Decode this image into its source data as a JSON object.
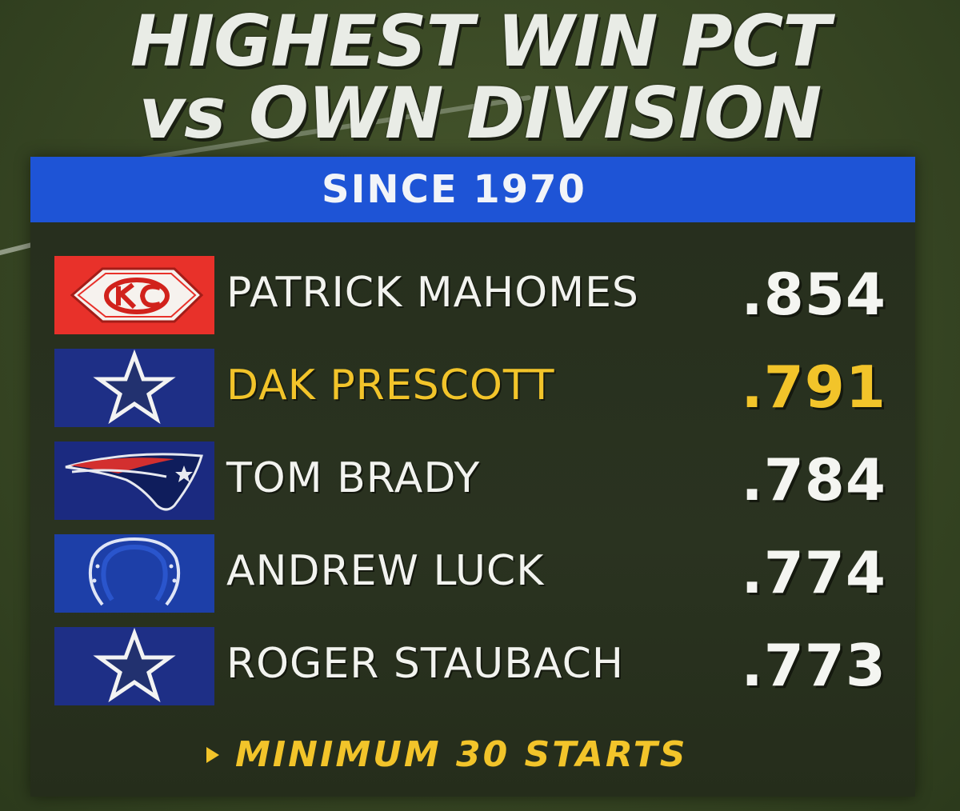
{
  "title": {
    "line1": "HIGHEST WIN PCT",
    "line2": "vs OWN DIVISION"
  },
  "banner": {
    "text": "SINCE 1970"
  },
  "colors": {
    "banner_blue": "#1e54d6",
    "highlight_gold": "#f2c42a",
    "text_white": "#f2f3ef"
  },
  "players": [
    {
      "team_icon": "chiefs-arrowhead-logo",
      "name": "PATRICK MAHOMES",
      "pct": ".854",
      "highlight": false
    },
    {
      "team_icon": "cowboys-star-logo",
      "name": "DAK PRESCOTT",
      "pct": ".791",
      "highlight": true
    },
    {
      "team_icon": "patriots-flying-elvis-logo",
      "name": "TOM BRADY",
      "pct": ".784",
      "highlight": false
    },
    {
      "team_icon": "colts-horseshoe-logo",
      "name": "ANDREW LUCK",
      "pct": ".774",
      "highlight": false
    },
    {
      "team_icon": "cowboys-star-logo",
      "name": "ROGER STAUBACH",
      "pct": ".773",
      "highlight": false
    }
  ],
  "footnote": {
    "text": "MINIMUM 30 STARTS"
  }
}
